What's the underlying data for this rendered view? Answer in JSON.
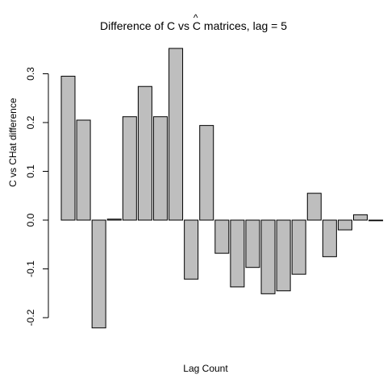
{
  "chart_data": {
    "type": "bar",
    "title": {
      "prefix": "Difference of C vs ",
      "hat_letter": "C",
      "hat": "^",
      "suffix": " matrices, lag = 5"
    },
    "xlabel": "Lag Count",
    "ylabel": "C vs CHat difference",
    "ylim": [
      -0.22,
      0.35
    ],
    "yticks": [
      -0.2,
      -0.1,
      0.0,
      0.1,
      0.2,
      0.3
    ],
    "ytick_labels": [
      "-0.2",
      "-0.1",
      "0.0",
      "0.1",
      "0.2",
      "0.3"
    ],
    "bar_color": "#bebebe",
    "grid": false,
    "values": [
      0.295,
      0.205,
      -0.221,
      0.002,
      0.212,
      0.274,
      0.212,
      0.352,
      -0.121,
      0.194,
      -0.068,
      -0.137,
      -0.097,
      -0.151,
      -0.145,
      -0.111,
      0.055,
      -0.075,
      -0.02,
      0.011,
      -0.001
    ]
  }
}
